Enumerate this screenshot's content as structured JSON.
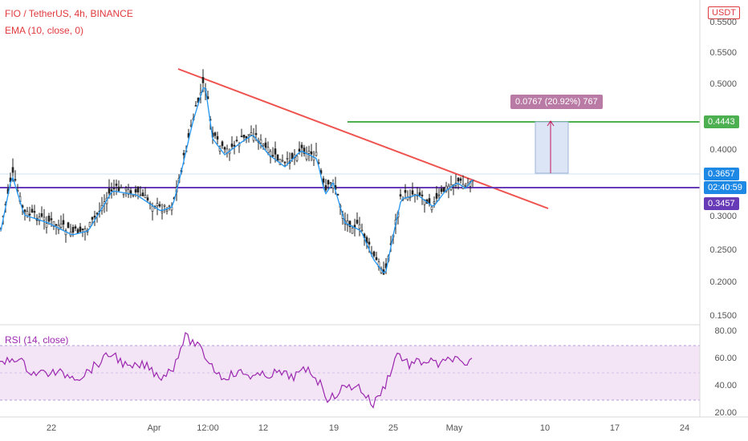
{
  "header": {
    "symbol_line": "FIO / TetherUS, 4h, BINANCE",
    "ema_line": "EMA (10, close, 0)",
    "currency": "USDT"
  },
  "price_scale": {
    "labels": [
      "0.5500",
      "0.5000",
      "0.4500",
      "0.4000",
      "0.3500",
      "0.3000",
      "0.2500",
      "0.2000",
      "0.1500"
    ]
  },
  "tags": {
    "target": "0.4443",
    "current": "0.3657",
    "countdown": "02:40:59",
    "support": "0.3457",
    "measure": "0.0767 (20.92%) 767"
  },
  "rsi": {
    "label": "RSI (14, close)",
    "scale": [
      "80.00",
      "60.00",
      "40.00",
      "20.00"
    ]
  },
  "time_axis": {
    "labels": [
      "22",
      "Apr",
      "12:00",
      "12",
      "19",
      "25",
      "May",
      "10",
      "17",
      "24"
    ]
  },
  "colors": {
    "trendline": "#ef5350",
    "target_line": "#4caf50",
    "support_line": "#673ab7",
    "ema": "#2196f3",
    "rsi_line": "#9c27b0",
    "rsi_band": "#f3e5f5",
    "measure_box": "#dbe5f5",
    "measure_label": "#b97ba5",
    "current_tag": "#1e88e5"
  }
}
